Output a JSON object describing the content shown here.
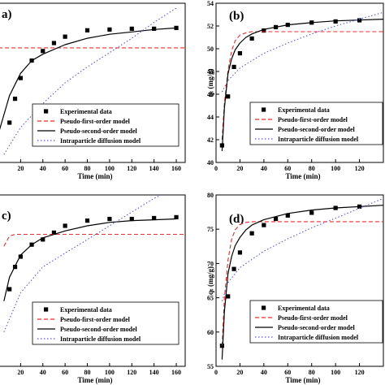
{
  "colors": {
    "experimental": "#000000",
    "pfo": "#e03030",
    "pso": "#000000",
    "ipd": "#5a5ad8"
  },
  "legend": [
    "Experimental data",
    "Pseudo-first-order model",
    "Pseudo-second-order model",
    "Intraparticle diffusion model"
  ],
  "chart_data": [
    {
      "id": "a",
      "type": "scatter",
      "panel_label": "a)",
      "xlabel": "Time (min)",
      "ylabel": "",
      "xlim": [
        0,
        168
      ],
      "ylim": [
        0,
        100
      ],
      "xticks": [
        20,
        40,
        60,
        80,
        100,
        120,
        140,
        160
      ],
      "yticks": [],
      "series": [
        {
          "name": "Experimental data",
          "x": [
            10,
            15,
            20,
            30,
            40,
            50,
            60,
            80,
            100,
            120,
            140,
            160
          ],
          "y": [
            25,
            40,
            53,
            64,
            70,
            75,
            79,
            83,
            83.5,
            84,
            84,
            84.5
          ]
        },
        {
          "name": "Pseudo-first-order model",
          "x": [
            0,
            168
          ],
          "y": [
            72,
            72
          ]
        },
        {
          "name": "Pseudo-second-order model",
          "x": [
            0,
            10,
            20,
            30,
            40,
            60,
            80,
            100,
            120,
            140,
            160
          ],
          "y": [
            18,
            42,
            56,
            64,
            68,
            74,
            78,
            80.5,
            82,
            83.5,
            84.5
          ]
        },
        {
          "name": "Intraparticle diffusion model",
          "x": [
            5,
            20,
            40,
            60,
            80,
            100,
            120,
            140,
            160
          ],
          "y": [
            5,
            22,
            37,
            50,
            60,
            69,
            78,
            88,
            97
          ]
        }
      ]
    },
    {
      "id": "b",
      "type": "scatter",
      "panel_label": "(b)",
      "xlabel": "Time (min)",
      "ylabel": "qₜ (mg/g)",
      "xlim": [
        0,
        140
      ],
      "ylim": [
        40,
        54
      ],
      "xticks": [
        0,
        20,
        40,
        60,
        80,
        100,
        120
      ],
      "yticks": [
        40,
        42,
        44,
        46,
        48,
        50,
        52,
        54
      ],
      "series": [
        {
          "name": "Experimental data",
          "x": [
            5,
            10,
            15,
            20,
            30,
            40,
            50,
            60,
            80,
            100,
            120
          ],
          "y": [
            41.5,
            45.8,
            48.4,
            49.6,
            50.9,
            51.6,
            51.9,
            52.1,
            52.3,
            52.4,
            52.5
          ]
        },
        {
          "name": "Pseudo-first-order model",
          "x": [
            5,
            7,
            10,
            13,
            16,
            20,
            25,
            30,
            40,
            60,
            80,
            140
          ],
          "y": [
            42,
            45.2,
            48.1,
            49.8,
            50.7,
            51.2,
            51.4,
            51.5,
            51.5,
            51.5,
            51.5,
            51.5
          ]
        },
        {
          "name": "Pseudo-second-order model",
          "x": [
            5,
            7,
            10,
            13,
            16,
            20,
            25,
            30,
            40,
            60,
            80,
            100,
            140
          ],
          "y": [
            41,
            44.8,
            47.8,
            49.1,
            49.9,
            50.5,
            51.0,
            51.3,
            51.7,
            52.1,
            52.3,
            52.45,
            52.6
          ]
        },
        {
          "name": "Intraparticle diffusion model",
          "x": [
            5,
            10,
            20,
            40,
            60,
            80,
            100,
            140
          ],
          "y": [
            46.2,
            47.2,
            48.3,
            49.6,
            50.5,
            51.3,
            52.0,
            53.2
          ]
        }
      ]
    },
    {
      "id": "c",
      "type": "scatter",
      "panel_label": "c)",
      "xlabel": "Time (min)",
      "ylabel": "",
      "xlim": [
        0,
        168
      ],
      "ylim": [
        0,
        100
      ],
      "xticks": [
        20,
        40,
        60,
        80,
        100,
        120,
        140,
        160
      ],
      "yticks": [],
      "series": [
        {
          "name": "Experimental data",
          "x": [
            10,
            15,
            20,
            30,
            40,
            50,
            60,
            80,
            100,
            120,
            140,
            160
          ],
          "y": [
            45,
            58,
            64,
            71,
            74,
            78,
            82,
            85,
            86,
            86,
            86.5,
            87
          ]
        },
        {
          "name": "Pseudo-first-order model",
          "x": [
            5,
            10,
            15,
            20,
            168
          ],
          "y": [
            70,
            76,
            77,
            77,
            77
          ]
        },
        {
          "name": "Pseudo-second-order model",
          "x": [
            5,
            10,
            20,
            30,
            40,
            60,
            80,
            100,
            120,
            140,
            160
          ],
          "y": [
            38,
            52,
            65,
            71,
            75,
            79,
            82,
            84,
            85,
            85.5,
            86
          ]
        },
        {
          "name": "Intraparticle diffusion model",
          "x": [
            5,
            20,
            40,
            60,
            80,
            100,
            120,
            140,
            160
          ],
          "y": [
            20,
            43,
            58,
            66,
            74,
            82,
            90,
            98,
            104
          ]
        }
      ]
    },
    {
      "id": "d",
      "type": "scatter",
      "panel_label": "(d)",
      "xlabel": "Time (min)",
      "ylabel": "qₜ (mg/g)",
      "xlim": [
        0,
        140
      ],
      "ylim": [
        55,
        80
      ],
      "xticks": [
        0,
        20,
        40,
        60,
        80,
        100,
        120
      ],
      "yticks": [
        55,
        60,
        65,
        70,
        75,
        80
      ],
      "series": [
        {
          "name": "Experimental data",
          "x": [
            5,
            10,
            15,
            20,
            30,
            40,
            50,
            60,
            80,
            100,
            120
          ],
          "y": [
            58,
            65.2,
            69.2,
            71.6,
            74.4,
            75.6,
            76.5,
            77,
            77.4,
            78.1,
            78.3
          ]
        },
        {
          "name": "Pseudo-first-order model",
          "x": [
            5,
            7,
            10,
            13,
            16,
            20,
            25,
            30,
            40,
            60,
            80,
            140
          ],
          "y": [
            58,
            65,
            70.5,
            73.5,
            74.9,
            75.7,
            76,
            76.1,
            76.1,
            76.1,
            76.1,
            76.1
          ]
        },
        {
          "name": "Pseudo-second-order model",
          "x": [
            5,
            7,
            10,
            13,
            16,
            20,
            25,
            30,
            40,
            60,
            80,
            100,
            140
          ],
          "y": [
            56,
            63,
            68.5,
            71,
            72.6,
            73.8,
            74.9,
            75.6,
            76.4,
            77.3,
            77.8,
            78.1,
            78.5
          ]
        },
        {
          "name": "Intraparticle diffusion model",
          "x": [
            5,
            10,
            20,
            40,
            60,
            80,
            100,
            140
          ],
          "y": [
            64.5,
            67.2,
            69.4,
            71.8,
            73.6,
            75.2,
            76.6,
            79.5
          ]
        }
      ]
    }
  ]
}
